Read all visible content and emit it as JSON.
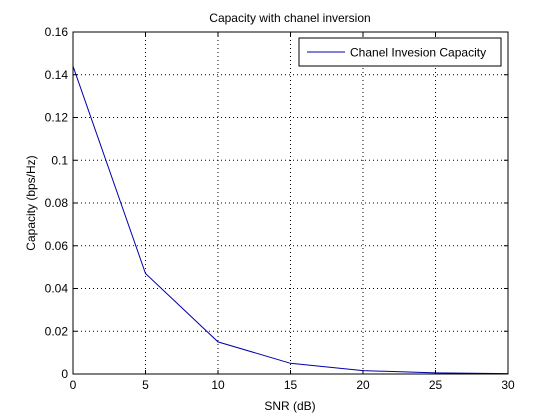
{
  "chart_data": {
    "type": "line",
    "title": "Capacity with chanel inversion",
    "xlabel": "SNR (dB)",
    "ylabel": "Capacity (bps/Hz)",
    "xlim": [
      0,
      30
    ],
    "ylim": [
      0,
      0.16
    ],
    "xticks": [
      0,
      5,
      10,
      15,
      20,
      25,
      30
    ],
    "yticks": [
      0,
      0.02,
      0.04,
      0.06,
      0.08,
      0.1,
      0.12,
      0.14,
      0.16
    ],
    "xtick_labels": [
      "0",
      "5",
      "10",
      "15",
      "20",
      "25",
      "30"
    ],
    "ytick_labels": [
      "0",
      "0.02",
      "0.04",
      "0.06",
      "0.08",
      "0.1",
      "0.12",
      "0.14",
      "0.16"
    ],
    "grid": true,
    "legend_position": "top-right",
    "series": [
      {
        "name": "Chanel Invesion Capacity",
        "color": "#0000aa",
        "x": [
          0,
          5,
          10,
          15,
          20,
          25,
          30
        ],
        "y": [
          0.144,
          0.047,
          0.015,
          0.005,
          0.0016,
          0.0005,
          0.0002
        ]
      }
    ]
  }
}
